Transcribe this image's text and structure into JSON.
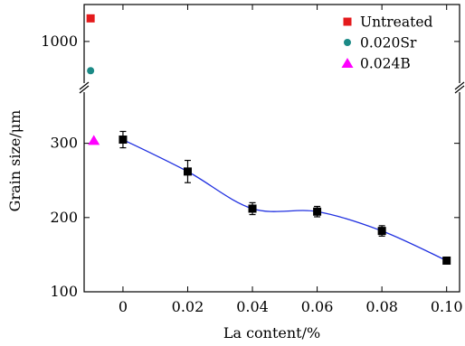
{
  "chart_data": {
    "type": "scatter",
    "xlabel": "La content/%",
    "ylabel": "Grain size/μm",
    "x_ticks": [
      "0",
      "0.02",
      "0.04",
      "0.06",
      "0.08",
      "0.10"
    ],
    "y_ticks_lower": [
      "100",
      "200",
      "300"
    ],
    "y_ticks_upper": [
      "1000"
    ],
    "xlim": [
      -0.012,
      0.104
    ],
    "ylim_lower": [
      100,
      375
    ],
    "ylim_upper_range": [
      850,
      1120
    ],
    "axis_break": true,
    "legend": {
      "position": "top-right",
      "entries": [
        {
          "label": "Untreated",
          "marker": "square",
          "color": "#e41a1c"
        },
        {
          "label": "0.020Sr",
          "marker": "circle",
          "color": "#1b8a86"
        },
        {
          "label": "0.024B",
          "marker": "triangle",
          "color": "#ff00ff"
        }
      ]
    },
    "series": [
      {
        "label": "Untreated",
        "marker": "square",
        "color": "#e41a1c",
        "points": [
          {
            "x": -0.01,
            "y": 1075
          }
        ]
      },
      {
        "label": "0.020Sr",
        "marker": "circle",
        "color": "#1b8a86",
        "points": [
          {
            "x": -0.01,
            "y": 905
          }
        ]
      },
      {
        "label": "0.024B",
        "marker": "triangle",
        "color": "#ff00ff",
        "points": [
          {
            "x": -0.009,
            "y": 304
          }
        ]
      },
      {
        "label": "",
        "marker": "square",
        "color": "#000000",
        "line_color": "#1f2fe0",
        "smooth_line": true,
        "x": [
          0,
          0.02,
          0.04,
          0.06,
          0.08,
          0.1
        ],
        "y": [
          305,
          262,
          212,
          208,
          182,
          142
        ],
        "err": [
          11,
          15,
          8,
          7,
          7,
          3
        ]
      }
    ]
  }
}
